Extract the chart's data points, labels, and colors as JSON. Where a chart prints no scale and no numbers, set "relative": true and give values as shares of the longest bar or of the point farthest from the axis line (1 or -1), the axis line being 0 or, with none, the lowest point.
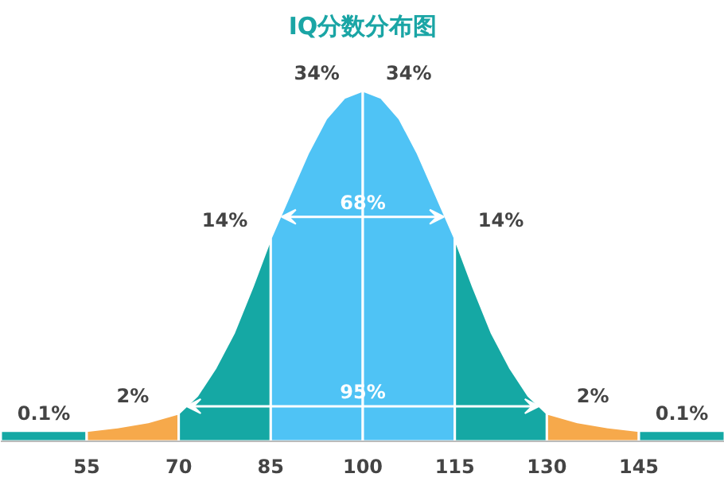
{
  "chart_data": {
    "type": "area",
    "title": "IQ分数分布图",
    "relative": true,
    "xlim": [
      41,
      159
    ],
    "xticks": [
      55,
      70,
      85,
      100,
      115,
      130,
      145
    ],
    "series": [
      {
        "name": "0.1%",
        "color": "#15a8a4",
        "x": [
          41,
          45,
          50,
          55
        ],
        "values": [
          0.03,
          0.03,
          0.03,
          0.03
        ]
      },
      {
        "name": "2%",
        "color": "#f6a94b",
        "x": [
          55,
          60,
          65,
          70
        ],
        "values": [
          0.03,
          0.04,
          0.055,
          0.08
        ]
      },
      {
        "name": "14%",
        "color": "#15a8a4",
        "x": [
          70,
          73,
          76,
          79,
          82,
          85
        ],
        "values": [
          0.08,
          0.13,
          0.21,
          0.31,
          0.44,
          0.58
        ]
      },
      {
        "name": "34%",
        "color": "#4fc3f5",
        "x": [
          85,
          88,
          91,
          94,
          97,
          100
        ],
        "values": [
          0.58,
          0.7,
          0.82,
          0.92,
          0.98,
          1
        ]
      },
      {
        "name": "34%",
        "color": "#4fc3f5",
        "x": [
          100,
          103,
          106,
          109,
          112,
          115
        ],
        "values": [
          1,
          0.98,
          0.92,
          0.82,
          0.7,
          0.58
        ]
      },
      {
        "name": "14%",
        "color": "#15a8a4",
        "x": [
          115,
          118,
          121,
          124,
          127,
          130
        ],
        "values": [
          0.58,
          0.44,
          0.31,
          0.21,
          0.13,
          0.08
        ]
      },
      {
        "name": "2%",
        "color": "#f6a94b",
        "x": [
          130,
          135,
          140,
          145
        ],
        "values": [
          0.08,
          0.055,
          0.04,
          0.03
        ]
      },
      {
        "name": "0.1%",
        "color": "#15a8a4",
        "x": [
          145,
          150,
          155,
          159
        ],
        "values": [
          0.03,
          0.03,
          0.03,
          0.03
        ]
      }
    ],
    "annotations": [
      {
        "text": "68%",
        "x": 100,
        "y": 0.64
      },
      {
        "text": "95%",
        "x": 100,
        "y": 0.1
      }
    ]
  }
}
